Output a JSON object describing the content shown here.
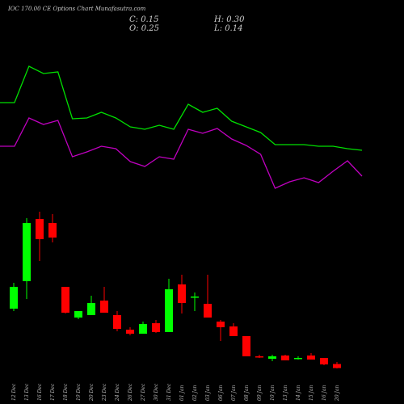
{
  "header": {
    "title": "IOC 170.00 CE Options Chart Munafasutra.com",
    "close": "C: 0.15",
    "high": "H: 0.30",
    "open": "O: 0.25",
    "low": "L: 0.14"
  },
  "chart_data": {
    "type": "candlestick",
    "categories": [
      "12 Dec",
      "13 Dec",
      "16 Dec",
      "17 Dec",
      "18 Dec",
      "19 Dec",
      "20 Dec",
      "23 Dec",
      "24 Dec",
      "26 Dec",
      "27 Dec",
      "30 Dec",
      "31 Dec",
      "01 Jan",
      "02 Jan",
      "03 Jan",
      "06 Jan",
      "07 Jan",
      "08 Jan",
      "09 Jan",
      "10 Jan",
      "13 Jan",
      "14 Jan",
      "15 Jan",
      "16 Jan",
      "20 Jan"
    ],
    "open": [
      1.62,
      2.3,
      3.84,
      3.74,
      2.16,
      1.4,
      1.46,
      1.82,
      1.46,
      1.1,
      1.0,
      1.26,
      1.04,
      2.22,
      1.9,
      1.74,
      1.3,
      1.18,
      0.94,
      0.44,
      0.38,
      0.46,
      0.38,
      0.46,
      0.4,
      0.25
    ],
    "high": [
      2.26,
      3.86,
      4.02,
      3.96,
      2.16,
      1.56,
      1.94,
      2.16,
      1.56,
      1.16,
      1.3,
      1.34,
      2.36,
      2.46,
      2.02,
      2.46,
      1.34,
      1.26,
      0.94,
      0.48,
      0.48,
      0.48,
      0.44,
      0.52,
      0.4,
      0.3
    ],
    "low": [
      1.56,
      1.86,
      2.8,
      3.26,
      1.5,
      1.36,
      1.46,
      1.52,
      1.06,
      0.96,
      1.0,
      1.02,
      1.04,
      1.5,
      1.56,
      1.4,
      0.82,
      0.94,
      0.44,
      0.4,
      0.32,
      0.34,
      0.36,
      0.36,
      0.22,
      0.14
    ],
    "close": [
      2.16,
      3.74,
      3.34,
      3.38,
      1.52,
      1.56,
      1.76,
      1.52,
      1.12,
      1.0,
      1.24,
      1.04,
      2.1,
      1.76,
      1.92,
      1.4,
      1.16,
      0.94,
      0.44,
      0.42,
      0.44,
      0.34,
      0.4,
      0.36,
      0.24,
      0.15
    ],
    "up_color": "#00ff00",
    "down_color": "#ff0000",
    "ylim": [
      0,
      4.5
    ],
    "y2lim": [
      0,
      100
    ],
    "series": [
      {
        "axis": "y2",
        "color": "#00e000",
        "values": [
          61.5,
          61.5,
          84,
          79.5,
          80.5,
          51.5,
          52,
          55.5,
          52,
          46.5,
          45,
          47.5,
          45,
          60.5,
          55.5,
          58,
          50,
          46.5,
          43,
          35.5,
          35.5,
          35.5,
          34.5,
          34.5,
          33,
          32
        ]
      },
      {
        "axis": "y2",
        "color": "#c000c0",
        "values": [
          34.5,
          34.5,
          52,
          48,
          50.5,
          28,
          31,
          34.5,
          33,
          25,
          22,
          28,
          26.5,
          45,
          42.5,
          45.5,
          39,
          35,
          29.5,
          8.5,
          12.5,
          15,
          12,
          19,
          25.5,
          16
        ]
      }
    ]
  }
}
